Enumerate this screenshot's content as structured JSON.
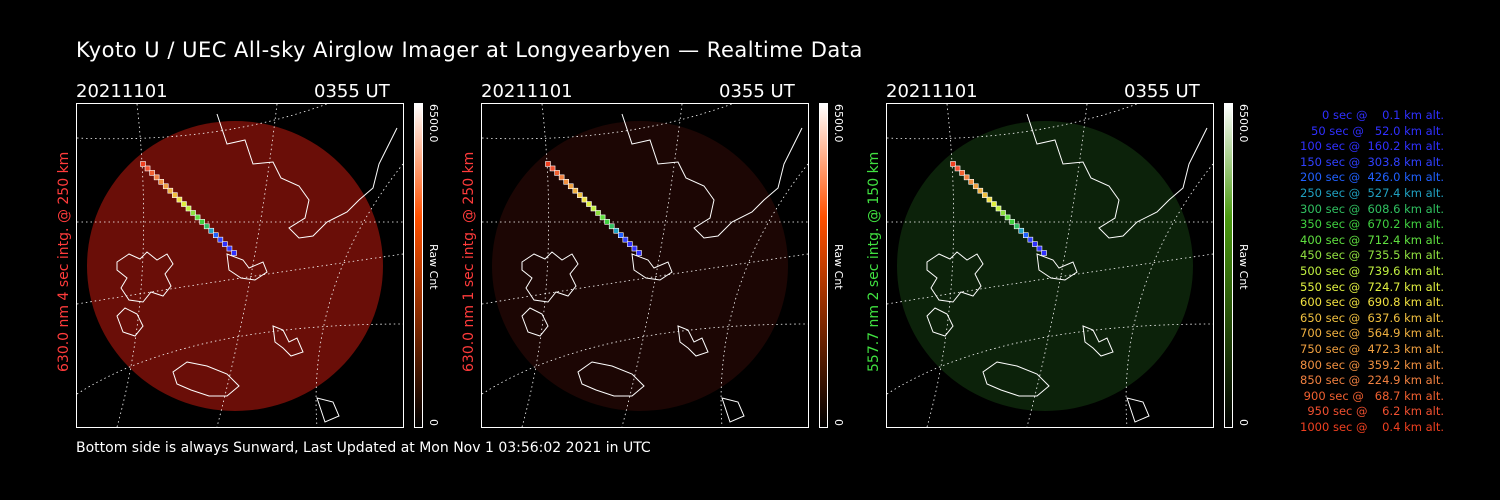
{
  "title": "Kyoto U / UEC All-sky Airglow Imager at Longyearbyen — Realtime Data",
  "footer": "Bottom side is always Sunward, Last Updated at Mon Nov  1 03:56:02 2021 in UTC",
  "panels": [
    {
      "date": "20211101",
      "time": "0355 UT",
      "side_label": "630.0 nm  4 sec intg. @ 250 km",
      "side_color": "#ff3b3b",
      "cbar_max": "6500.0",
      "cbar_min": "0",
      "cbar_unit": "Raw Cnt",
      "cbar_color": "#ff5000",
      "image_tint": "#6a0e08"
    },
    {
      "date": "20211101",
      "time": "0355 UT",
      "side_label": "630.0 nm  1 sec intg. @ 250 km",
      "side_color": "#ff3b3b",
      "cbar_max": "6500.0",
      "cbar_min": "0",
      "cbar_unit": "Raw Cnt",
      "cbar_color": "#ff5000",
      "image_tint": "#1c0604"
    },
    {
      "date": "20211101",
      "time": "0355 UT",
      "side_label": "557.7 nm  2 sec intg. @ 150 km",
      "side_color": "#40e040",
      "cbar_max": "6500.0",
      "cbar_min": "0",
      "cbar_unit": "Raw Cnt",
      "cbar_color": "#4a9a10",
      "image_tint": "#0c220a"
    }
  ],
  "legend": [
    {
      "text": "   0 sec @    0.1 km alt.",
      "color": "#3030ff"
    },
    {
      "text": "  50 sec @   52.0 km alt.",
      "color": "#3030ff"
    },
    {
      "text": " 100 sec @  160.2 km alt.",
      "color": "#3030ff"
    },
    {
      "text": " 150 sec @  303.8 km alt.",
      "color": "#3040ff"
    },
    {
      "text": " 200 sec @  426.0 km alt.",
      "color": "#2060ff"
    },
    {
      "text": " 250 sec @  527.4 km alt.",
      "color": "#20a0c0"
    },
    {
      "text": " 300 sec @  608.6 km alt.",
      "color": "#30c060"
    },
    {
      "text": " 350 sec @  670.2 km alt.",
      "color": "#40d040"
    },
    {
      "text": " 400 sec @  712.4 km alt.",
      "color": "#60e040"
    },
    {
      "text": " 450 sec @  735.5 km alt.",
      "color": "#90e040"
    },
    {
      "text": " 500 sec @  739.6 km alt.",
      "color": "#c0f040"
    },
    {
      "text": " 550 sec @  724.7 km alt.",
      "color": "#e0f040"
    },
    {
      "text": " 600 sec @  690.8 km alt.",
      "color": "#f0e040"
    },
    {
      "text": " 650 sec @  637.6 km alt.",
      "color": "#f0c040"
    },
    {
      "text": " 700 sec @  564.9 km alt.",
      "color": "#f0b040"
    },
    {
      "text": " 750 sec @  472.3 km alt.",
      "color": "#f0a040"
    },
    {
      "text": " 800 sec @  359.2 km alt.",
      "color": "#f09040"
    },
    {
      "text": " 850 sec @  224.9 km alt.",
      "color": "#f08040"
    },
    {
      "text": " 900 sec @   68.7 km alt.",
      "color": "#f06030"
    },
    {
      "text": " 950 sec @    6.2 km alt.",
      "color": "#f05030"
    },
    {
      "text": "1000 sec @    0.4 km alt.",
      "color": "#f04020"
    }
  ]
}
